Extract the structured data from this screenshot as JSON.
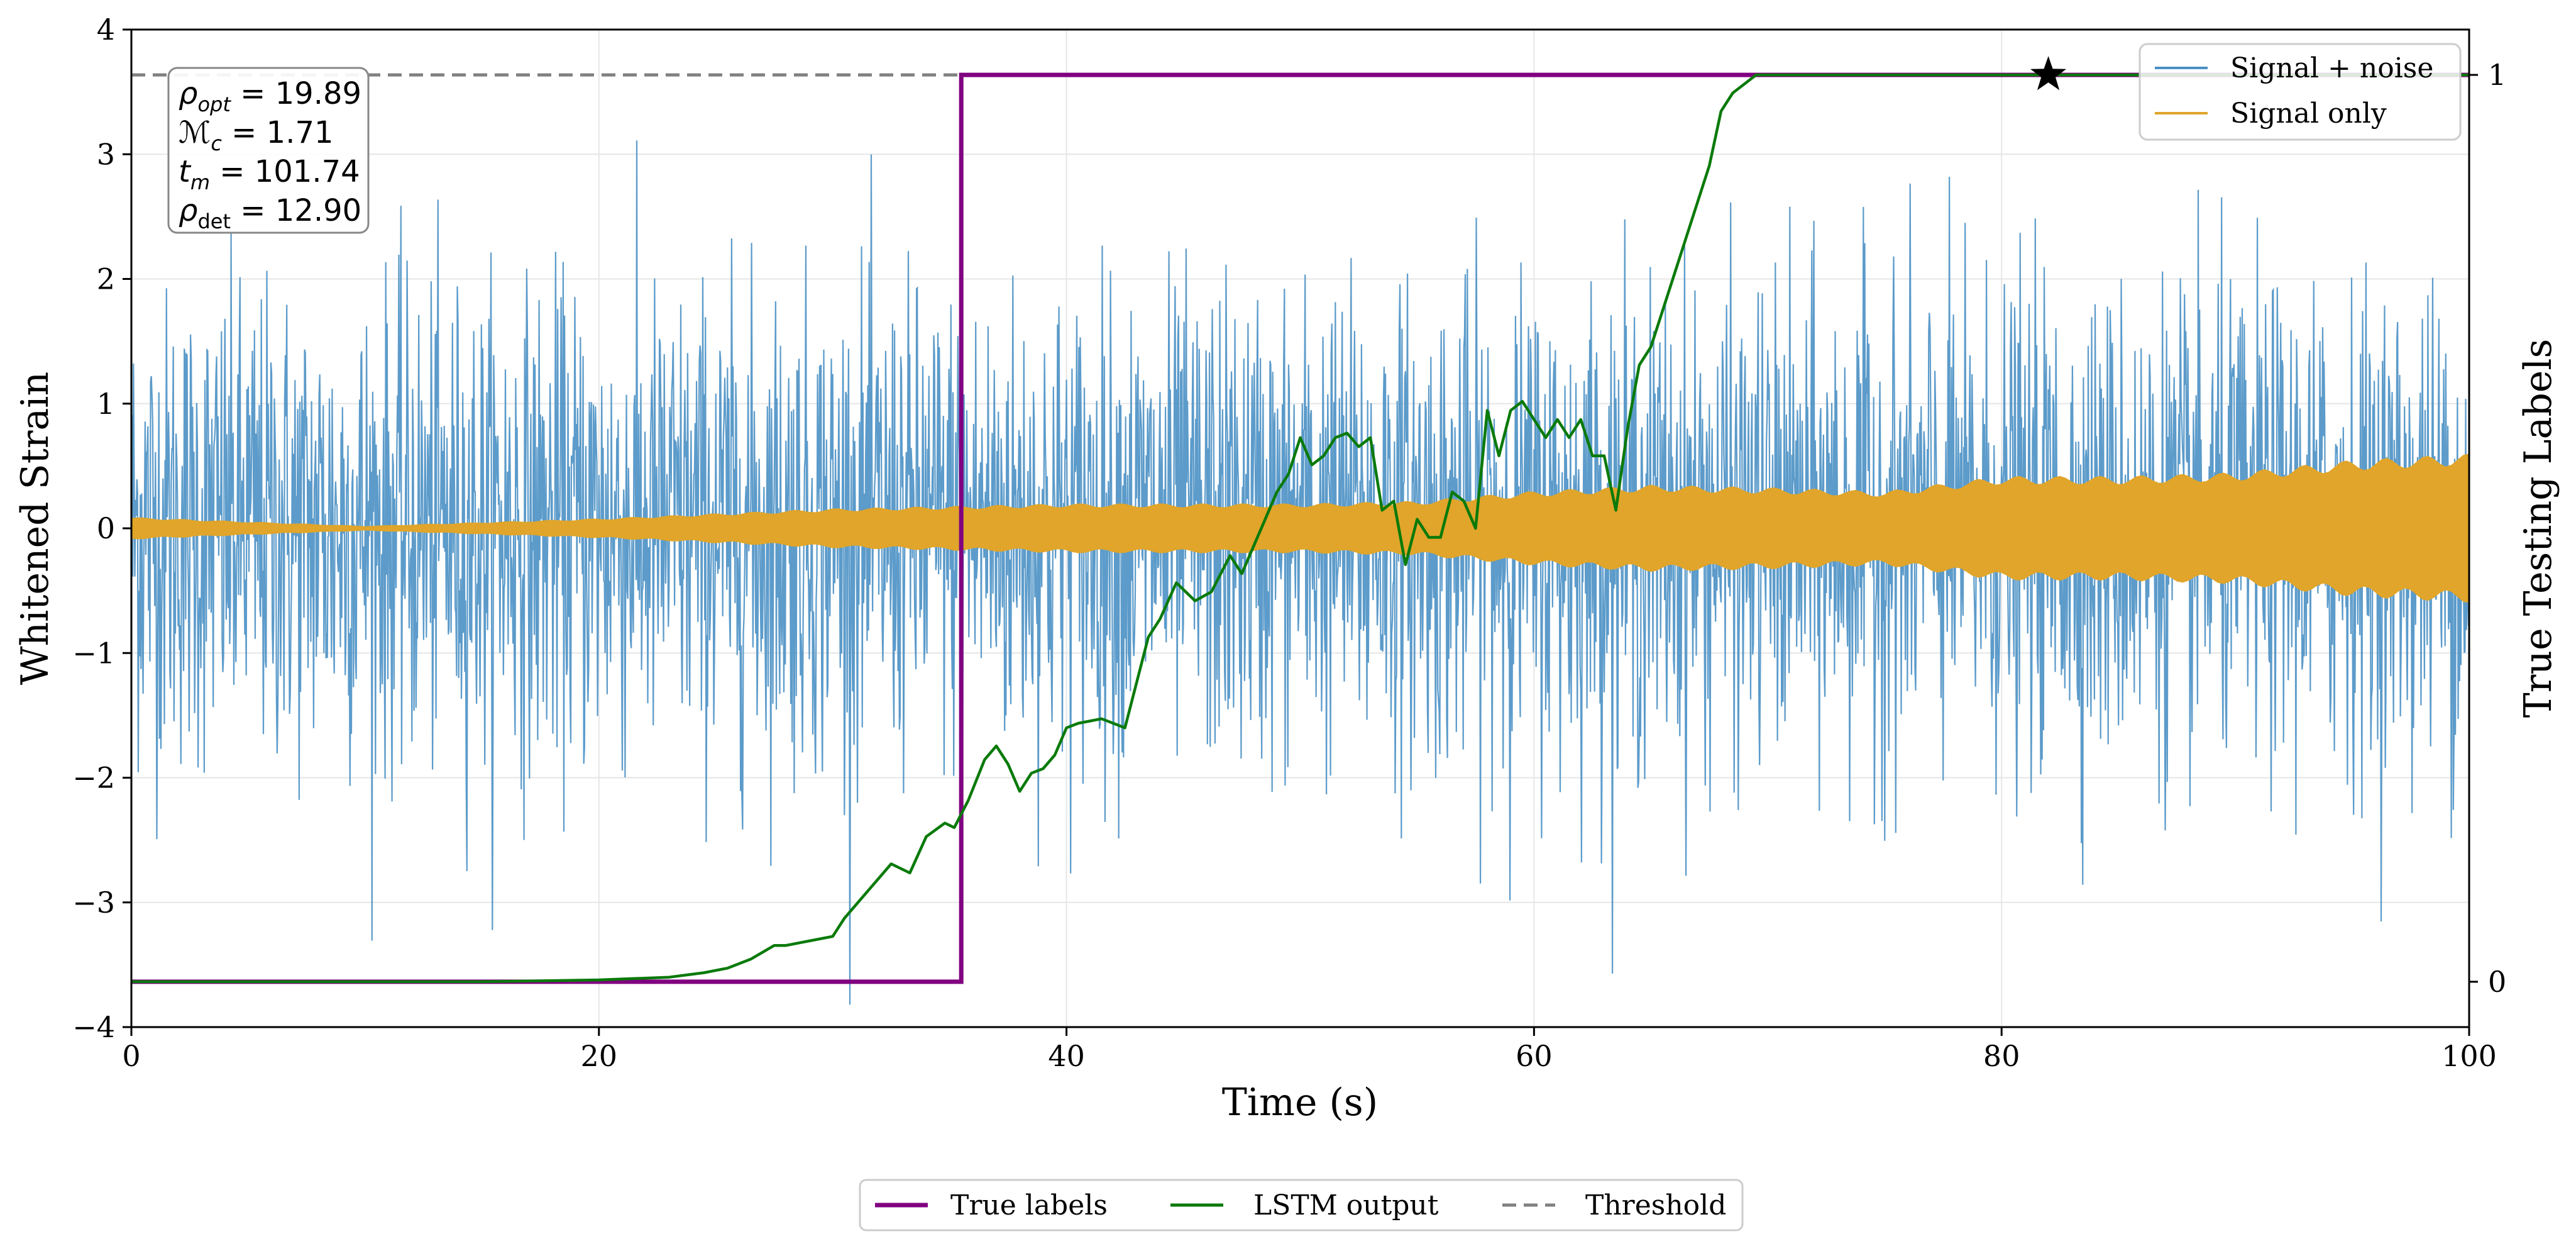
{
  "chart_data": {
    "type": "line",
    "title": "",
    "xlabel": "Time (s)",
    "ylabel": "Whitened Strain",
    "ylabel_right": "True Testing Labels",
    "xlim": [
      0,
      100
    ],
    "ylim": [
      -4,
      4
    ],
    "ylim_right": [
      -0.05,
      1.05
    ],
    "x_ticks": [
      0,
      20,
      40,
      60,
      80,
      100
    ],
    "y_ticks": [
      -4,
      -3,
      -2,
      -1,
      0,
      1,
      2,
      3,
      4
    ],
    "y_ticks_right": [
      0,
      1
    ],
    "grid": true,
    "colors": {
      "signal_noise": "#4a90c4",
      "signal_only": "#e0a52a",
      "true_labels": "#800080",
      "lstm": "#0a7a0a",
      "threshold": "#808080",
      "star": "#000000"
    },
    "series": [
      {
        "name": "Signal + noise",
        "description": "whitened strain time series, roughly within +/-2.5 with spikes to +/-3.7",
        "approx_envelope": [
          -2.6,
          2.6
        ],
        "extremes": {
          "max": 3.7,
          "min": -4.0
        }
      },
      {
        "name": "Signal only",
        "description": "chirp signal, amplitude grows toward the end",
        "envelope_x": [
          0,
          10,
          20,
          30,
          40,
          50,
          55,
          60,
          65,
          70,
          75,
          80,
          85,
          90,
          95,
          100
        ],
        "envelope_amp": [
          0.09,
          0.02,
          0.08,
          0.16,
          0.2,
          0.2,
          0.22,
          0.3,
          0.35,
          0.33,
          0.3,
          0.42,
          0.42,
          0.45,
          0.55,
          0.6
        ]
      },
      {
        "name": "True labels",
        "axis": "right",
        "x": [
          0,
          35.5,
          35.5,
          100
        ],
        "y": [
          0,
          0,
          1,
          1
        ]
      },
      {
        "name": "LSTM output",
        "axis": "right",
        "x": [
          0,
          10,
          15,
          20,
          23,
          24.5,
          25.5,
          26.5,
          27.5,
          28,
          29,
          30,
          30.5,
          31.5,
          32.5,
          33.3,
          34,
          34.8,
          35.2,
          35.8,
          36.5,
          37,
          37.5,
          38,
          38.5,
          39,
          39.5,
          40,
          40.5,
          41.5,
          42.5,
          43.5,
          44,
          44.7,
          45.5,
          46.2,
          47,
          47.5,
          48,
          48.5,
          49,
          49.5,
          50,
          50.5,
          51,
          51.5,
          52,
          52.5,
          53,
          53.5,
          54,
          54.5,
          55,
          55.5,
          56,
          56.5,
          57,
          57.5,
          58,
          58.5,
          59,
          59.5,
          60,
          60.5,
          61,
          61.5,
          62,
          62.5,
          63,
          63.5,
          64,
          64.5,
          65,
          65.5,
          66,
          66.5,
          67,
          67.5,
          68,
          68.5,
          69,
          69.5,
          70,
          70.5,
          71,
          100
        ],
        "y": [
          0,
          0,
          0,
          0.002,
          0.005,
          0.01,
          0.015,
          0.025,
          0.04,
          0.04,
          0.045,
          0.05,
          0.07,
          0.1,
          0.13,
          0.12,
          0.16,
          0.175,
          0.17,
          0.2,
          0.245,
          0.26,
          0.24,
          0.21,
          0.23,
          0.235,
          0.25,
          0.28,
          0.285,
          0.29,
          0.28,
          0.38,
          0.4,
          0.44,
          0.42,
          0.43,
          0.47,
          0.45,
          0.48,
          0.51,
          0.54,
          0.56,
          0.6,
          0.57,
          0.58,
          0.6,
          0.605,
          0.59,
          0.6,
          0.52,
          0.53,
          0.46,
          0.51,
          0.49,
          0.49,
          0.54,
          0.53,
          0.5,
          0.63,
          0.58,
          0.63,
          0.64,
          0.62,
          0.6,
          0.62,
          0.6,
          0.62,
          0.58,
          0.58,
          0.52,
          0.61,
          0.68,
          0.7,
          0.74,
          0.78,
          0.82,
          0.86,
          0.9,
          0.96,
          0.98,
          0.99,
          1.0,
          1.0,
          1.0,
          1.0,
          1.0
        ]
      },
      {
        "name": "Threshold",
        "axis": "right",
        "value": 1.0,
        "style": "dashed"
      }
    ],
    "marker": {
      "name": "star",
      "x": 82,
      "y_right": 1.0
    },
    "legend_upper": {
      "position": "top-right",
      "entries": [
        "Signal + noise",
        "Signal only"
      ]
    },
    "legend_lower": {
      "position": "bottom-center",
      "entries": [
        "True labels",
        "LSTM output",
        "Threshold"
      ]
    },
    "annotation_box": {
      "position": "top-left",
      "lines": [
        {
          "symbol": "ρ",
          "sub": "opt",
          "value": "= 19.89"
        },
        {
          "symbol": "ℳ",
          "sub": "c",
          "value": "= 1.71"
        },
        {
          "symbol": "t",
          "sub": "m",
          "value": "= 101.74"
        },
        {
          "symbol": "ρ",
          "sub": "det",
          "value": "= 12.90"
        }
      ]
    }
  }
}
